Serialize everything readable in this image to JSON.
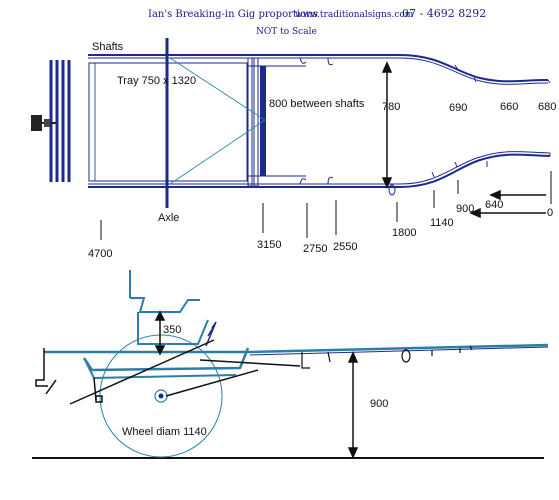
{
  "header": {
    "title": "Ian's Breaking-in Gig proportions",
    "website": "www.traditionalsigns.com",
    "phone": "07 - 4692 8292",
    "subtitle": "NOT to Scale"
  },
  "plan_view": {
    "shafts_label": "Shafts",
    "tray_label": "Tray 750 x 1320",
    "between_shafts_label": "800 between shafts",
    "axle_label": "Axle",
    "width_labels": [
      "780",
      "690",
      "660",
      "680"
    ],
    "position_labels": [
      "4700",
      "3150",
      "2750",
      "2550",
      "1800",
      "1140",
      "900",
      "640",
      "0"
    ]
  },
  "side_view": {
    "seat_height_label": "350",
    "shaft_height_label": "900",
    "wheel_label": "Wheel diam 1140"
  },
  "colors": {
    "navy": "#1c2a8c",
    "teal": "#2a7fa8",
    "header": "#1a1a8c"
  }
}
